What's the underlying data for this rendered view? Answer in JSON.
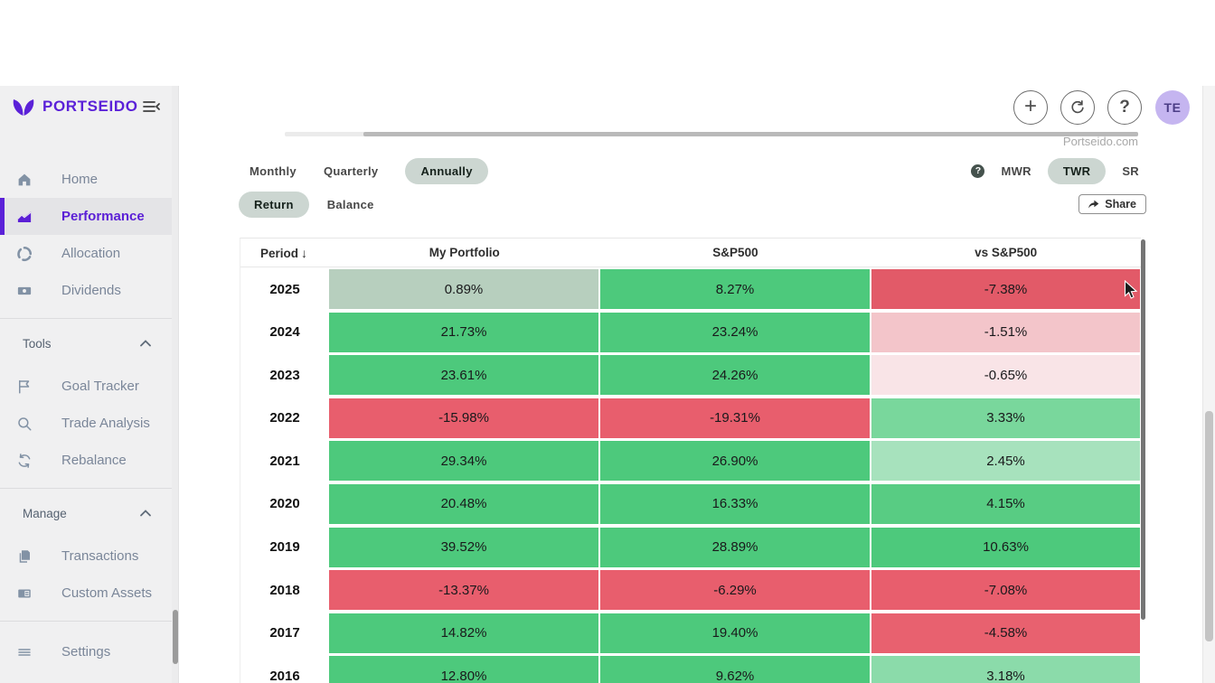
{
  "brand": {
    "name": "PORTSEIDO",
    "purple": "#5b21d8"
  },
  "sidebar": {
    "sections": [
      {
        "items": [
          {
            "label": "Home",
            "icon": "home-icon",
            "active": false
          },
          {
            "label": "Performance",
            "icon": "performance-chart-icon",
            "active": true
          },
          {
            "label": "Allocation",
            "icon": "allocation-donut-icon",
            "active": false
          },
          {
            "label": "Dividends",
            "icon": "dividends-cash-icon",
            "active": false
          }
        ]
      },
      {
        "header": "Tools",
        "items": [
          {
            "label": "Goal Tracker",
            "icon": "goal-flag-icon",
            "active": false
          },
          {
            "label": "Trade Analysis",
            "icon": "trade-search-icon",
            "active": false
          },
          {
            "label": "Rebalance",
            "icon": "rebalance-arrows-icon",
            "active": false
          }
        ]
      },
      {
        "header": "Manage",
        "items": [
          {
            "label": "Transactions",
            "icon": "transactions-pages-icon",
            "active": false
          },
          {
            "label": "Custom Assets",
            "icon": "custom-assets-card-icon",
            "active": false
          }
        ]
      },
      {
        "items": [
          {
            "label": "Settings",
            "icon": "settings-lines-icon",
            "active": false
          }
        ]
      }
    ]
  },
  "topbar": {
    "watermark": "Portseido.com",
    "avatar_initials": "TE",
    "plus_glyph": "+",
    "question_glyph": "?"
  },
  "controls": {
    "period_tabs": [
      {
        "label": "Monthly",
        "active": false
      },
      {
        "label": "Quarterly",
        "active": false
      },
      {
        "label": "Annually",
        "active": true
      }
    ],
    "view_tabs": [
      {
        "label": "Return",
        "active": true
      },
      {
        "label": "Balance",
        "active": false
      }
    ],
    "metric_tabs": [
      {
        "label": "MWR",
        "active": false
      },
      {
        "label": "TWR",
        "active": true
      },
      {
        "label": "SR",
        "active": false
      }
    ],
    "help_dot_glyph": "?",
    "share_label": "Share"
  },
  "table": {
    "columns": [
      "Period",
      "My Portfolio",
      "S&P500",
      "vs S&P500"
    ],
    "sort_indicator": "↓",
    "rows": [
      {
        "year": "2025",
        "cells": [
          {
            "v": "0.89%",
            "bg": "#b7cfbe"
          },
          {
            "v": "8.27%",
            "bg": "#4dc97c"
          },
          {
            "v": "-7.38%",
            "bg": "#e25a68"
          }
        ]
      },
      {
        "year": "2024",
        "cells": [
          {
            "v": "21.73%",
            "bg": "#4dc97c"
          },
          {
            "v": "23.24%",
            "bg": "#4dc97c"
          },
          {
            "v": "-1.51%",
            "bg": "#f3c5ca"
          }
        ]
      },
      {
        "year": "2023",
        "cells": [
          {
            "v": "23.61%",
            "bg": "#4dc97c"
          },
          {
            "v": "24.26%",
            "bg": "#4dc97c"
          },
          {
            "v": "-0.65%",
            "bg": "#f9e4e7"
          }
        ]
      },
      {
        "year": "2022",
        "cells": [
          {
            "v": "-15.98%",
            "bg": "#e85e6d"
          },
          {
            "v": "-19.31%",
            "bg": "#e85e6d"
          },
          {
            "v": "3.33%",
            "bg": "#79d79c"
          }
        ]
      },
      {
        "year": "2021",
        "cells": [
          {
            "v": "29.34%",
            "bg": "#4dc97c"
          },
          {
            "v": "26.90%",
            "bg": "#4dc97c"
          },
          {
            "v": "2.45%",
            "bg": "#a7e2bd"
          }
        ]
      },
      {
        "year": "2020",
        "cells": [
          {
            "v": "20.48%",
            "bg": "#4dc97c"
          },
          {
            "v": "16.33%",
            "bg": "#4dc97c"
          },
          {
            "v": "4.15%",
            "bg": "#58cc83"
          }
        ]
      },
      {
        "year": "2019",
        "cells": [
          {
            "v": "39.52%",
            "bg": "#4dc97c"
          },
          {
            "v": "28.89%",
            "bg": "#4dc97c"
          },
          {
            "v": "10.63%",
            "bg": "#4dc97c"
          }
        ]
      },
      {
        "year": "2018",
        "cells": [
          {
            "v": "-13.37%",
            "bg": "#e85e6d"
          },
          {
            "v": "-6.29%",
            "bg": "#e85e6d"
          },
          {
            "v": "-7.08%",
            "bg": "#e85e6d"
          }
        ]
      },
      {
        "year": "2017",
        "cells": [
          {
            "v": "14.82%",
            "bg": "#4dc97c"
          },
          {
            "v": "19.40%",
            "bg": "#4dc97c"
          },
          {
            "v": "-4.58%",
            "bg": "#e8616f"
          }
        ]
      },
      {
        "year": "2016",
        "cells": [
          {
            "v": "12.80%",
            "bg": "#4dc97c"
          },
          {
            "v": "9.62%",
            "bg": "#4dc97c"
          },
          {
            "v": "3.18%",
            "bg": "#8bdbaa"
          }
        ]
      }
    ]
  },
  "colors": {
    "pill_bg": "#ccd6d1",
    "green": "#4dc97c",
    "red": "#e85e6d",
    "sidebar_bg": "#f0f0f1",
    "active_item_bg": "#e4e4e7"
  }
}
